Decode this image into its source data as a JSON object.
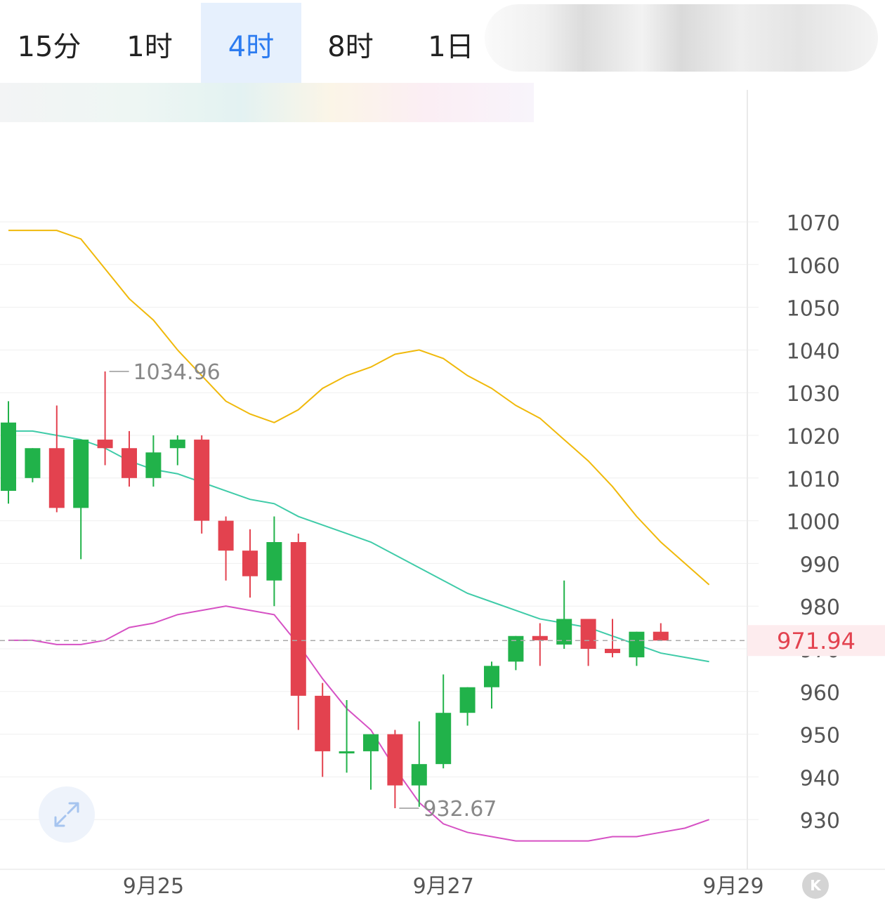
{
  "tabs": [
    {
      "label": "15分",
      "active": false
    },
    {
      "label": "1时",
      "active": false
    },
    {
      "label": "4时",
      "active": true
    },
    {
      "label": "8时",
      "active": false
    },
    {
      "label": "1日",
      "active": false
    }
  ],
  "colors": {
    "up": "#21b24a",
    "down": "#e3424f",
    "ma_yellow": "#f0b90b",
    "ma_teal": "#3fcba8",
    "ma_magenta": "#d651c4",
    "active_tab": "#2d7cf0",
    "grid": "#efefef"
  },
  "icons": {
    "expand": "expand-icon",
    "kline": "k-icon"
  },
  "k_button_label": "K",
  "chart_data": {
    "type": "candlestick",
    "title": "",
    "xlabel": "",
    "ylabel": "",
    "ylim": [
      925,
      1080
    ],
    "yticks": [
      1070,
      1060,
      1050,
      1040,
      1030,
      1020,
      1010,
      1000,
      990,
      980,
      970,
      960,
      950,
      940,
      930
    ],
    "xticks": [
      {
        "label": "9月25",
        "index": 6
      },
      {
        "label": "9月27",
        "index": 18
      },
      {
        "label": "9月29",
        "index": 30
      }
    ],
    "last_price": 971.94,
    "last_price_label": "971.94",
    "annotations": [
      {
        "label": "1034.96",
        "value": 1034.96,
        "index": 4
      },
      {
        "label": "932.67",
        "value": 932.67,
        "index": 16
      }
    ],
    "candles": [
      {
        "o": 1007,
        "h": 1028,
        "l": 1004,
        "c": 1023
      },
      {
        "o": 1010,
        "h": 1017,
        "l": 1009,
        "c": 1017
      },
      {
        "o": 1017,
        "h": 1027,
        "l": 1002,
        "c": 1003
      },
      {
        "o": 1003,
        "h": 1019,
        "l": 991,
        "c": 1019
      },
      {
        "o": 1019,
        "h": 1034.96,
        "l": 1013,
        "c": 1017
      },
      {
        "o": 1017,
        "h": 1021,
        "l": 1008,
        "c": 1010
      },
      {
        "o": 1010,
        "h": 1020,
        "l": 1008,
        "c": 1016
      },
      {
        "o": 1017,
        "h": 1020,
        "l": 1013,
        "c": 1019
      },
      {
        "o": 1019,
        "h": 1020,
        "l": 997,
        "c": 1000
      },
      {
        "o": 1000,
        "h": 1001,
        "l": 986,
        "c": 993
      },
      {
        "o": 993,
        "h": 998,
        "l": 982,
        "c": 987
      },
      {
        "o": 986,
        "h": 1001,
        "l": 980,
        "c": 995
      },
      {
        "o": 995,
        "h": 997,
        "l": 951,
        "c": 959
      },
      {
        "o": 959,
        "h": 962,
        "l": 940,
        "c": 946
      },
      {
        "o": 946,
        "h": 958,
        "l": 941,
        "c": 946
      },
      {
        "o": 946,
        "h": 950,
        "l": 937,
        "c": 950
      },
      {
        "o": 950,
        "h": 951,
        "l": 932.67,
        "c": 938
      },
      {
        "o": 938,
        "h": 953,
        "l": 933,
        "c": 943
      },
      {
        "o": 943,
        "h": 964,
        "l": 942,
        "c": 955
      },
      {
        "o": 955,
        "h": 961,
        "l": 952,
        "c": 961
      },
      {
        "o": 961,
        "h": 967,
        "l": 956,
        "c": 966
      },
      {
        "o": 967,
        "h": 973,
        "l": 965,
        "c": 973
      },
      {
        "o": 973,
        "h": 976,
        "l": 966,
        "c": 972
      },
      {
        "o": 971,
        "h": 986,
        "l": 970,
        "c": 977
      },
      {
        "o": 977,
        "h": 977,
        "l": 966,
        "c": 970
      },
      {
        "o": 970,
        "h": 977,
        "l": 968,
        "c": 969
      },
      {
        "o": 968,
        "h": 974,
        "l": 966,
        "c": 974
      },
      {
        "o": 974,
        "h": 976,
        "l": 972,
        "c": 971.94
      }
    ],
    "series": [
      {
        "color_key": "ma_yellow",
        "values": [
          1068,
          1068,
          1068,
          1066,
          1059,
          1052,
          1047,
          1040,
          1034,
          1028,
          1025,
          1023,
          1026,
          1031,
          1034,
          1036,
          1039,
          1040,
          1038,
          1034,
          1031,
          1027,
          1024,
          1019,
          1014,
          1008,
          1001,
          995,
          990,
          985
        ]
      },
      {
        "color_key": "ma_teal",
        "values": [
          1021,
          1021,
          1020,
          1019,
          1017,
          1014,
          1012,
          1011,
          1009,
          1007,
          1005,
          1004,
          1001,
          999,
          997,
          995,
          992,
          989,
          986,
          983,
          981,
          979,
          977,
          976,
          975,
          973,
          971,
          969,
          968,
          967
        ]
      },
      {
        "color_key": "ma_magenta",
        "values": [
          972,
          972,
          971,
          971,
          972,
          975,
          976,
          978,
          979,
          980,
          979,
          978,
          971,
          963,
          956,
          951,
          942,
          934,
          929,
          927,
          926,
          925,
          925,
          925,
          925,
          926,
          926,
          927,
          928,
          930
        ]
      }
    ]
  }
}
